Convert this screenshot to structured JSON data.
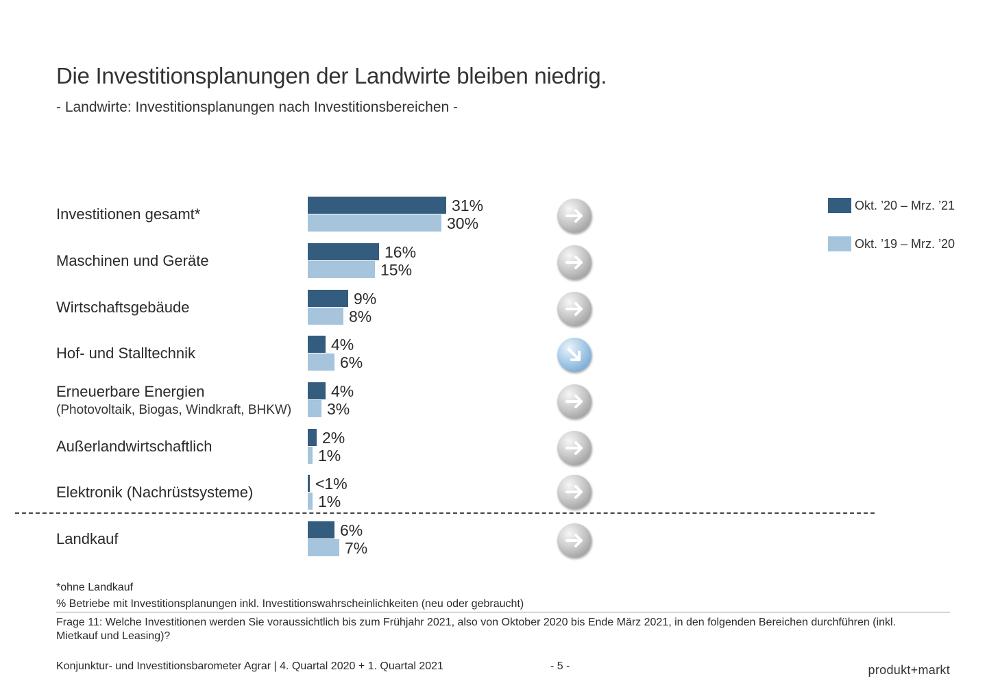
{
  "title": "Die Investitionsplanungen der Landwirte bleiben niedrig.",
  "subtitle": "- Landwirte: Investitionsplanungen nach Investitionsbereichen -",
  "legend": [
    {
      "label": "Okt. ’20 – Mrz. ’21",
      "color": "#345c7e"
    },
    {
      "label": "Okt. ’19 – Mrz. ’20",
      "color": "#a6c4dc"
    }
  ],
  "chart_data": {
    "type": "bar",
    "orientation": "horizontal",
    "unit": "%",
    "categories": [
      {
        "label": "Investitionen gesamt*",
        "sublabel": ""
      },
      {
        "label": "Maschinen und Geräte",
        "sublabel": ""
      },
      {
        "label": "Wirtschaftsgebäude",
        "sublabel": ""
      },
      {
        "label": "Hof- und Stalltechnik",
        "sublabel": ""
      },
      {
        "label": "Erneuerbare Energien",
        "sublabel": "(Photovoltaik, Biogas, Windkraft, BHKW)"
      },
      {
        "label": "Außerlandwirtschaftlich",
        "sublabel": ""
      },
      {
        "label": "Elektronik (Nachrüstsysteme)",
        "sublabel": ""
      },
      {
        "label": "Landkauf",
        "sublabel": ""
      }
    ],
    "series": [
      {
        "name": "Okt. ’20 – Mrz. ’21",
        "color": "#345c7e",
        "values": [
          31,
          16,
          9,
          4,
          4,
          2,
          0.5,
          6
        ],
        "labels": [
          "31%",
          "16%",
          "9%",
          "4%",
          "4%",
          "2%",
          "<1%",
          "6%"
        ]
      },
      {
        "name": "Okt. ’19 – Mrz. ’20",
        "color": "#a6c4dc",
        "values": [
          30,
          15,
          8,
          6,
          3,
          1,
          1,
          7
        ],
        "labels": [
          "30%",
          "15%",
          "8%",
          "6%",
          "3%",
          "1%",
          "1%",
          "7%"
        ]
      }
    ],
    "trend": [
      "right",
      "right",
      "right",
      "down-right",
      "right",
      "right",
      "right",
      "right"
    ],
    "xlim": [
      0,
      31
    ],
    "grid": false,
    "legend_position": "top-right"
  },
  "notes": {
    "footnote": "*ohne Landkauf",
    "base": "% Betriebe mit Investitionsplanungen inkl. Investitionswahrscheinlichkeiten (neu oder gebraucht)",
    "question": "Frage 11: Welche Investitionen werden Sie voraussichtlich bis zum Frühjahr 2021, also von Oktober 2020 bis Ende März 2021, in den folgenden Bereichen durchführen (inkl. Mietkauf und Leasing)?"
  },
  "footer": {
    "source": "Konjunktur- und Investitionsbarometer Agrar | 4. Quartal 2020 + 1. Quartal 2021",
    "page": "- 5 -",
    "brand": "produkt+markt"
  }
}
